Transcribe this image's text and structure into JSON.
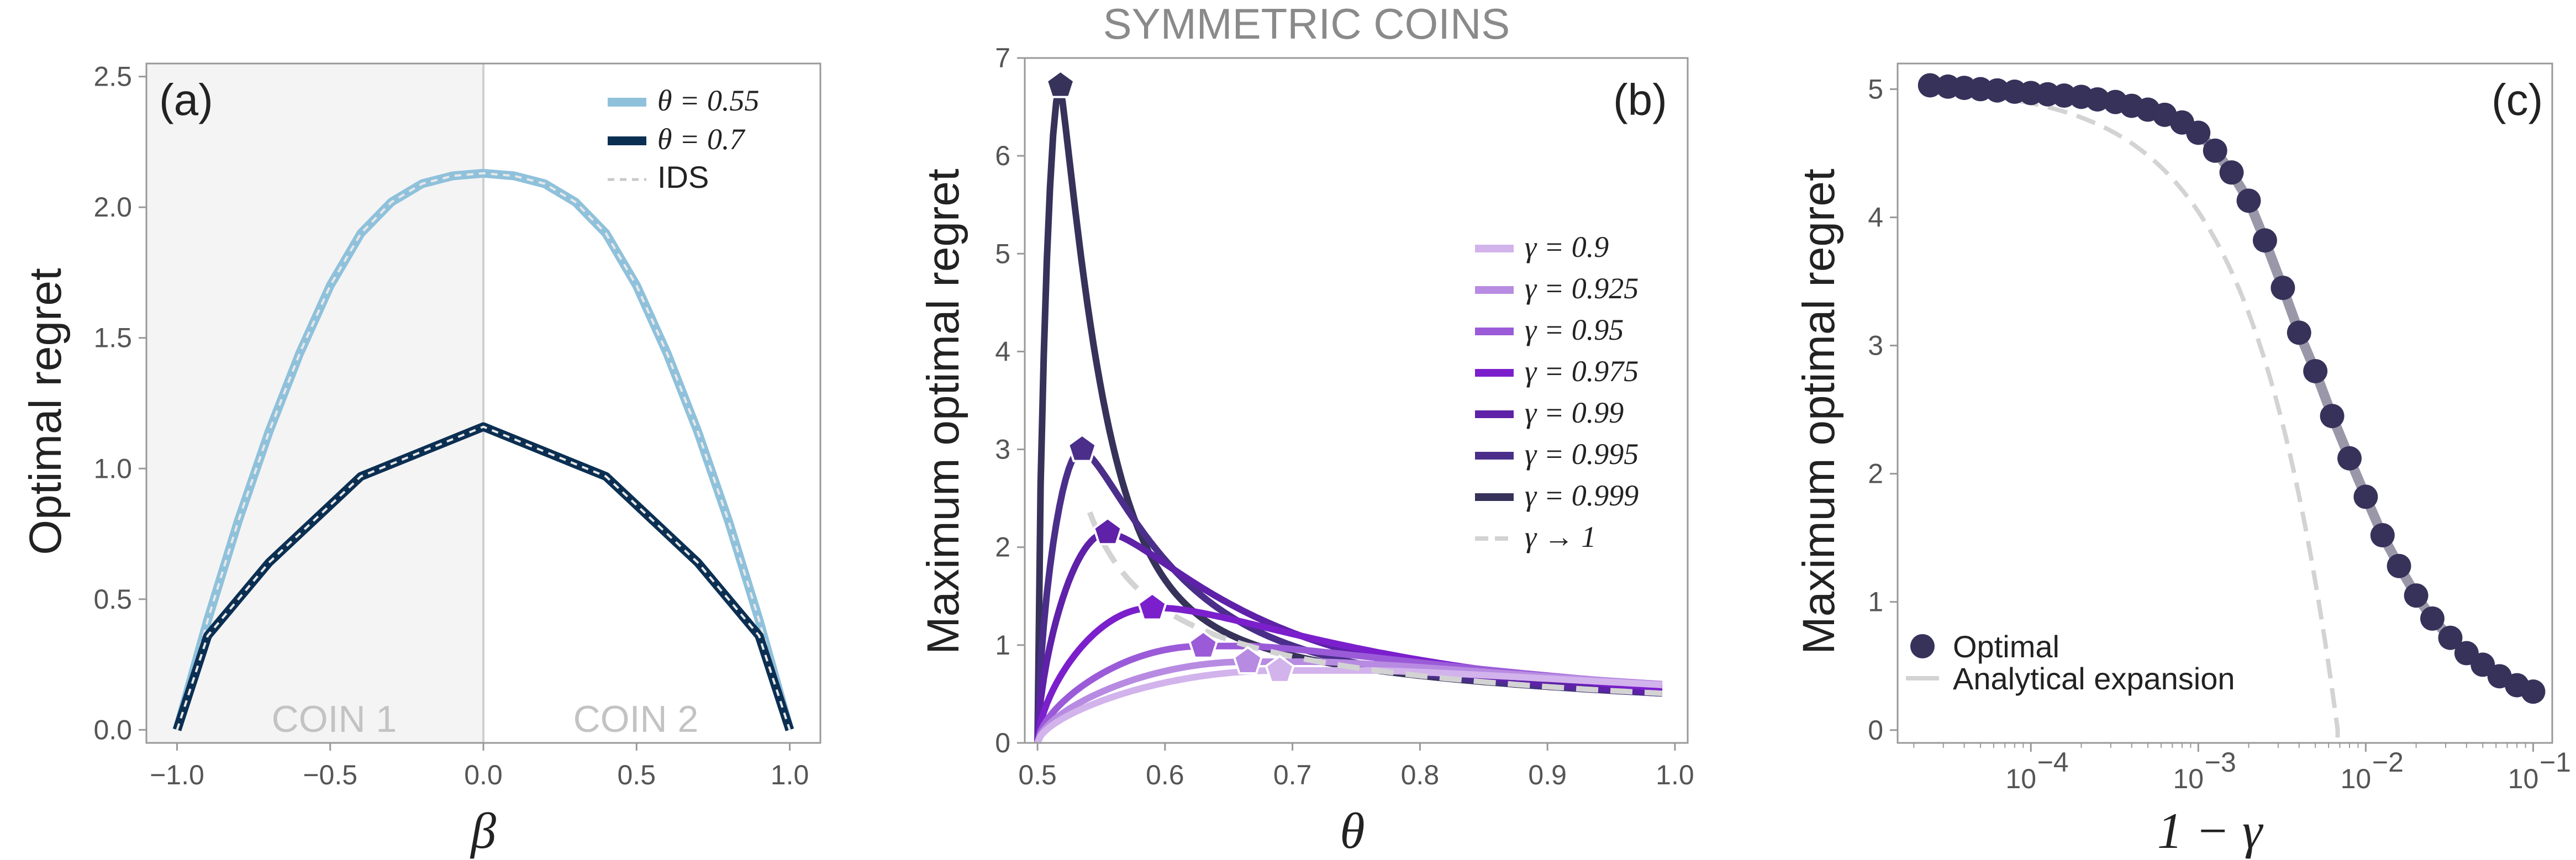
{
  "suptitle": "SYMMETRIC COINS",
  "chart_data": [
    {
      "type": "line",
      "panel": "(a)",
      "xlabel": "β",
      "ylabel": "Optimal regret",
      "xlim": [
        -1.1,
        1.1
      ],
      "ylim": [
        -0.05,
        2.55
      ],
      "xticks": [
        -1.0,
        -0.5,
        0.0,
        0.5,
        1.0
      ],
      "xtick_labels": [
        "−1.0",
        "−0.5",
        "0.0",
        "0.5",
        "1.0"
      ],
      "yticks": [
        0.0,
        0.5,
        1.0,
        1.5,
        2.0,
        2.5
      ],
      "ytick_labels": [
        "0.0",
        "0.5",
        "1.0",
        "1.5",
        "2.0",
        "2.5"
      ],
      "shaded_region": {
        "x": [
          -1.1,
          0.0
        ],
        "color": "#f4f4f4"
      },
      "vline": 0.0,
      "region_labels": [
        "COIN 1",
        "COIN 2"
      ],
      "legend_position": "top-right",
      "series": [
        {
          "name": "θ = 0.55",
          "color": "#8fc1db",
          "x": [
            -1.0,
            -0.9,
            -0.8,
            -0.7,
            -0.6,
            -0.5,
            -0.4,
            -0.3,
            -0.2,
            -0.1,
            0.0,
            0.1,
            0.2,
            0.3,
            0.4,
            0.5,
            0.6,
            0.7,
            0.8,
            0.9,
            1.0
          ],
          "y": [
            0.0,
            0.42,
            0.8,
            1.14,
            1.44,
            1.7,
            1.9,
            2.02,
            2.09,
            2.12,
            2.13,
            2.12,
            2.09,
            2.02,
            1.9,
            1.7,
            1.44,
            1.14,
            0.8,
            0.42,
            0.0
          ]
        },
        {
          "name": "θ = 0.7",
          "color": "#0b2f52",
          "x": [
            -1.0,
            -0.9,
            -0.7,
            -0.4,
            0.0,
            0.4,
            0.7,
            0.9,
            1.0
          ],
          "y": [
            0.0,
            0.36,
            0.64,
            0.97,
            1.16,
            0.97,
            0.64,
            0.36,
            0.0
          ]
        },
        {
          "name": "IDS",
          "color": "#d0d0d0",
          "style": "dashed",
          "overlays": [
            "θ = 0.55",
            "θ = 0.7"
          ]
        }
      ]
    },
    {
      "type": "line",
      "panel": "(b)",
      "xlabel": "θ",
      "ylabel": "Maximum optimal regret",
      "xlim": [
        0.49,
        1.01
      ],
      "ylim": [
        0,
        7
      ],
      "xticks": [
        0.5,
        0.6,
        0.7,
        0.8,
        0.9,
        1.0
      ],
      "xtick_labels": [
        "0.5",
        "0.6",
        "0.7",
        "0.8",
        "0.9",
        "1.0"
      ],
      "yticks": [
        0,
        1,
        2,
        3,
        4,
        5,
        6,
        7
      ],
      "ytick_labels": [
        "0",
        "1",
        "2",
        "3",
        "4",
        "5",
        "6",
        "7"
      ],
      "legend_position": "center-right",
      "series": [
        {
          "name": "γ = 0.9",
          "color": "#d2b3ec",
          "peak": [
            0.69,
            0.74
          ]
        },
        {
          "name": "γ = 0.925",
          "color": "#b88be2",
          "peak": [
            0.665,
            0.83
          ]
        },
        {
          "name": "γ = 0.95",
          "color": "#9b5bd8",
          "peak": [
            0.63,
            0.99
          ]
        },
        {
          "name": "γ = 0.975",
          "color": "#7b1fcc",
          "peak": [
            0.59,
            1.38
          ]
        },
        {
          "name": "γ = 0.99",
          "color": "#5e21a8",
          "peak": [
            0.555,
            2.15
          ]
        },
        {
          "name": "γ = 0.995",
          "color": "#4a2e8a",
          "peak": [
            0.535,
            3.0
          ]
        },
        {
          "name": "γ = 0.999",
          "color": "#36325a",
          "peak": [
            0.518,
            6.72
          ]
        },
        {
          "name": "γ → 1",
          "color": "#d3d3d3",
          "style": "dashed"
        }
      ],
      "asymptote_formula": "0.5 / (θ − 0.5) scaled",
      "tail_end": [
        0.99,
        0.52
      ]
    },
    {
      "type": "scatter",
      "panel": "(c)",
      "xlabel": "1 − γ",
      "ylabel": "Maximum optimal regret",
      "xscale": "log",
      "xlim": [
        1.6e-05,
        0.13
      ],
      "ylim": [
        -0.1,
        5.2
      ],
      "xticks": [
        0.0001,
        0.001,
        0.01,
        0.1
      ],
      "xtick_labels": [
        "10",
        "10",
        "10",
        "10"
      ],
      "xtick_exponents": [
        "−4",
        "−3",
        "−2",
        "−1"
      ],
      "yticks": [
        0,
        1,
        2,
        3,
        4,
        5
      ],
      "ytick_labels": [
        "0",
        "1",
        "2",
        "3",
        "4",
        "5"
      ],
      "legend_position": "bottom-left",
      "series": [
        {
          "name": "Optimal",
          "color": "#36325a",
          "x": [
            2.5e-05,
            3.2e-05,
            4e-05,
            5e-05,
            6.3e-05,
            8e-05,
            0.0001,
            0.000126,
            0.000158,
            0.0002,
            0.00025,
            0.00032,
            0.0004,
            0.0005,
            0.00063,
            0.0008,
            0.001,
            0.00126,
            0.00158,
            0.002,
            0.0025,
            0.0032,
            0.004,
            0.005,
            0.0063,
            0.008,
            0.01,
            0.0126,
            0.0158,
            0.02,
            0.025,
            0.032,
            0.04,
            0.05,
            0.063,
            0.08,
            0.1
          ],
          "y": [
            5.03,
            5.02,
            5.01,
            5.0,
            4.99,
            4.98,
            4.97,
            4.96,
            4.95,
            4.94,
            4.92,
            4.9,
            4.87,
            4.84,
            4.8,
            4.74,
            4.66,
            4.52,
            4.35,
            4.13,
            3.82,
            3.45,
            3.1,
            2.8,
            2.45,
            2.12,
            1.82,
            1.52,
            1.28,
            1.05,
            0.87,
            0.72,
            0.6,
            0.51,
            0.42,
            0.35,
            0.3
          ]
        },
        {
          "name": "Analytical expansion",
          "color": "#d3d3d3",
          "style": "dashed"
        }
      ]
    }
  ],
  "panel_tags": {
    "a": "(a)",
    "b": "(b)",
    "c": "(c)"
  }
}
